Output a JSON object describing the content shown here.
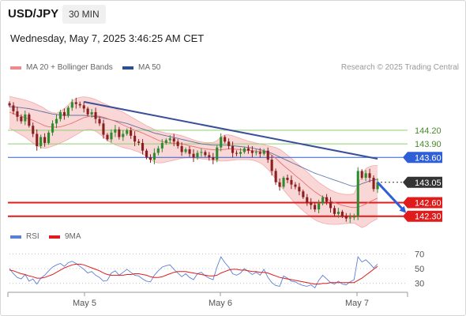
{
  "header": {
    "symbol": "USD/JPY",
    "timeframe": "30 MIN",
    "timestamp": "Wednesday, May 7, 2025 3:46:25 AM CET"
  },
  "legend_main": [
    {
      "label": "MA 20 + Bollinger Bands",
      "color": "#f08a8a"
    },
    {
      "label": "MA 50",
      "color": "#2e4f8f"
    }
  ],
  "credit": "Research © 2025 Trading Central",
  "legend_rsi": [
    {
      "label": "RSI",
      "color": "#5b7fd6"
    },
    {
      "label": "9MA",
      "color": "#e01b1b"
    }
  ],
  "colors": {
    "up": "#2e8b2e",
    "down": "#8b1f1f",
    "band_fill": "#f8c9c9",
    "ma50": "#2e4f8f",
    "trend": "#3a4f99",
    "resistance_green": "#8fcf6f",
    "blue_level": "#2f5fd6",
    "red_level": "#e01b1b",
    "current": "#333333"
  },
  "chart_data": [
    {
      "type": "candlestick",
      "title": "USD/JPY 30 MIN",
      "x_ticks": [
        "May 5",
        "May 6",
        "May 7"
      ],
      "ylim": [
        142.05,
        144.95
      ],
      "levels": [
        {
          "label": "144.20",
          "value": 144.2,
          "kind": "resistance",
          "color": "#8fcf6f"
        },
        {
          "label": "143.90",
          "value": 143.9,
          "kind": "resistance",
          "color": "#8fcf6f"
        },
        {
          "label": "143.60",
          "value": 143.6,
          "kind": "pivot",
          "color": "#2f5fd6"
        },
        {
          "label": "143.05",
          "value": 143.05,
          "kind": "current",
          "color": "#333333"
        },
        {
          "label": "142.60",
          "value": 142.6,
          "kind": "support",
          "color": "#e01b1b"
        },
        {
          "label": "142.30",
          "value": 142.3,
          "kind": "support",
          "color": "#e01b1b"
        }
      ],
      "close": [
        144.75,
        144.62,
        144.5,
        144.4,
        144.55,
        144.3,
        144.12,
        143.85,
        144.05,
        143.92,
        144.15,
        144.35,
        144.45,
        144.6,
        144.52,
        144.7,
        144.82,
        144.78,
        144.75,
        144.68,
        144.55,
        144.6,
        144.45,
        144.35,
        144.1,
        144.0,
        144.15,
        144.22,
        144.05,
        144.12,
        144.2,
        144.08,
        143.95,
        143.92,
        143.75,
        143.6,
        143.55,
        143.7,
        143.8,
        143.92,
        143.98,
        144.02,
        143.95,
        143.85,
        143.72,
        143.78,
        143.68,
        143.6,
        143.7,
        143.72,
        143.65,
        143.6,
        143.55,
        143.82,
        144.05,
        143.95,
        143.85,
        143.7,
        143.68,
        143.72,
        143.8,
        143.75,
        143.7,
        143.72,
        143.68,
        143.75,
        143.55,
        143.3,
        143.05,
        142.95,
        143.15,
        143.1,
        143.0,
        142.95,
        142.85,
        142.72,
        142.6,
        142.55,
        142.45,
        142.58,
        142.72,
        142.62,
        142.48,
        142.35,
        142.4,
        142.3,
        142.25,
        142.27,
        142.3,
        143.3,
        143.15,
        143.25,
        143.15,
        142.9,
        143.05
      ],
      "ma20": [
        144.6,
        144.57,
        144.54,
        144.51,
        144.48,
        144.45,
        144.42,
        144.38,
        144.34,
        144.3,
        144.28,
        144.27,
        144.27,
        144.28,
        144.3,
        144.33,
        144.36,
        144.4,
        144.44,
        144.48,
        144.5,
        144.52,
        144.52,
        144.51,
        144.49,
        144.46,
        144.43,
        144.4,
        144.36,
        144.32,
        144.28,
        144.24,
        144.2,
        144.17,
        144.14,
        144.1,
        144.06,
        144.02,
        143.98,
        143.95,
        143.93,
        143.92,
        143.92,
        143.91,
        143.9,
        143.88,
        143.86,
        143.84,
        143.82,
        143.8,
        143.79,
        143.78,
        143.77,
        143.76,
        143.77,
        143.78,
        143.79,
        143.79,
        143.78,
        143.77,
        143.76,
        143.76,
        143.75,
        143.74,
        143.73,
        143.72,
        143.7,
        143.65,
        143.58,
        143.5,
        143.42,
        143.35,
        143.28,
        143.2,
        143.13,
        143.06,
        142.98,
        142.91,
        142.84,
        142.78,
        142.73,
        142.68,
        142.64,
        142.6,
        142.57,
        142.54,
        142.52,
        142.5,
        142.49,
        142.5,
        142.53,
        142.57,
        142.62,
        142.66,
        142.7
      ],
      "band_upper": [
        144.95,
        144.93,
        144.91,
        144.89,
        144.87,
        144.84,
        144.81,
        144.77,
        144.73,
        144.68,
        144.62,
        144.59,
        144.58,
        144.62,
        144.68,
        144.76,
        144.85,
        144.9,
        144.93,
        144.94,
        144.93,
        144.91,
        144.88,
        144.84,
        144.8,
        144.76,
        144.72,
        144.68,
        144.64,
        144.6,
        144.55,
        144.5,
        144.45,
        144.4,
        144.35,
        144.3,
        144.26,
        144.22,
        144.18,
        144.16,
        144.14,
        144.13,
        144.12,
        144.1,
        144.08,
        144.05,
        144.02,
        143.99,
        143.96,
        143.94,
        143.93,
        143.93,
        143.93,
        143.97,
        144.05,
        144.1,
        144.1,
        144.08,
        144.05,
        144.02,
        143.99,
        143.96,
        143.94,
        143.92,
        143.9,
        143.88,
        143.86,
        143.84,
        143.82,
        143.78,
        143.72,
        143.65,
        143.58,
        143.5,
        143.43,
        143.36,
        143.28,
        143.2,
        143.12,
        143.05,
        142.99,
        142.93,
        142.88,
        142.84,
        142.81,
        142.79,
        142.78,
        142.78,
        142.8,
        143.0,
        143.2,
        143.35,
        143.4,
        143.42,
        143.42
      ],
      "band_lower": [
        144.25,
        144.2,
        144.15,
        144.1,
        144.05,
        143.98,
        143.92,
        143.86,
        143.82,
        143.8,
        143.82,
        143.85,
        143.88,
        143.92,
        143.96,
        144.0,
        144.05,
        144.1,
        144.15,
        144.2,
        144.22,
        144.22,
        144.18,
        144.12,
        144.05,
        143.98,
        143.92,
        143.88,
        143.85,
        143.82,
        143.8,
        143.78,
        143.75,
        143.72,
        143.68,
        143.62,
        143.55,
        143.5,
        143.48,
        143.48,
        143.5,
        143.52,
        143.54,
        143.56,
        143.58,
        143.59,
        143.59,
        143.59,
        143.58,
        143.57,
        143.56,
        143.55,
        143.54,
        143.53,
        143.52,
        143.52,
        143.53,
        143.54,
        143.55,
        143.55,
        143.55,
        143.55,
        143.54,
        143.52,
        143.48,
        143.42,
        143.34,
        143.24,
        143.12,
        143.0,
        142.88,
        142.78,
        142.68,
        142.58,
        142.5,
        142.42,
        142.35,
        142.28,
        142.22,
        142.18,
        142.15,
        142.13,
        142.12,
        142.12,
        142.12,
        142.13,
        142.14,
        142.15,
        142.15,
        142.1,
        142.05,
        142.08,
        142.15,
        142.2,
        142.25
      ],
      "ma50": [
        144.72,
        144.72,
        144.71,
        144.7,
        144.69,
        144.68,
        144.66,
        144.64,
        144.62,
        144.6,
        144.58,
        144.56,
        144.55,
        144.54,
        144.53,
        144.53,
        144.53,
        144.53,
        144.53,
        144.53,
        144.52,
        144.51,
        144.5,
        144.49,
        144.47,
        144.45,
        144.43,
        144.41,
        144.39,
        144.37,
        144.35,
        144.32,
        144.29,
        144.26,
        144.23,
        144.2,
        144.17,
        144.14,
        144.12,
        144.1,
        144.08,
        144.06,
        144.04,
        144.02,
        144.0,
        143.98,
        143.96,
        143.94,
        143.92,
        143.9,
        143.89,
        143.88,
        143.87,
        143.87,
        143.87,
        143.87,
        143.87,
        143.86,
        143.85,
        143.84,
        143.83,
        143.82,
        143.81,
        143.79,
        143.77,
        143.75,
        143.72,
        143.69,
        143.65,
        143.61,
        143.57,
        143.53,
        143.49,
        143.45,
        143.41,
        143.37,
        143.33,
        143.29,
        143.25,
        143.22,
        143.19,
        143.16,
        143.13,
        143.1,
        143.07,
        143.04,
        143.01,
        142.98,
        142.96,
        142.98,
        143.02,
        143.05,
        143.08,
        143.1,
        143.12
      ],
      "trendline": {
        "from": [
          19,
          144.83
        ],
        "to": [
          94,
          143.57
        ]
      },
      "arrow": {
        "from": [
          94,
          143.05
        ],
        "to": [
          101,
          142.4
        ]
      }
    },
    {
      "type": "line",
      "title": "RSI",
      "y_ticks": [
        "70",
        "50",
        "30"
      ],
      "ylim": [
        20,
        80
      ],
      "series": [
        {
          "name": "RSI",
          "values": [
            50,
            43,
            38,
            36,
            42,
            33,
            36,
            29,
            37,
            41,
            47,
            52,
            55,
            57,
            53,
            58,
            60,
            57,
            53,
            49,
            44,
            46,
            41,
            38,
            33,
            34,
            44,
            47,
            41,
            45,
            49,
            45,
            41,
            40,
            36,
            33,
            32,
            41,
            47,
            52,
            54,
            55,
            49,
            44,
            39,
            43,
            38,
            35,
            43,
            45,
            40,
            37,
            35,
            52,
            66,
            58,
            52,
            43,
            41,
            44,
            50,
            46,
            42,
            45,
            41,
            49,
            38,
            31,
            27,
            26,
            40,
            37,
            33,
            32,
            29,
            27,
            26,
            28,
            24,
            34,
            41,
            36,
            31,
            29,
            33,
            29,
            28,
            32,
            35,
            66,
            59,
            62,
            57,
            51,
            56
          ]
        },
        {
          "name": "9MA",
          "values": [
            48,
            47,
            45,
            43,
            42,
            40,
            39,
            37,
            37,
            38,
            40,
            42,
            45,
            48,
            51,
            53,
            55,
            56,
            56,
            55,
            53,
            51,
            49,
            47,
            44,
            42,
            41,
            41,
            41,
            41,
            42,
            42,
            43,
            43,
            42,
            41,
            39,
            38,
            38,
            39,
            41,
            43,
            45,
            46,
            46,
            46,
            45,
            44,
            43,
            42,
            41,
            40,
            40,
            41,
            44,
            46,
            48,
            49,
            49,
            48,
            48,
            47,
            46,
            46,
            45,
            45,
            44,
            42,
            40,
            38,
            37,
            36,
            35,
            34,
            33,
            32,
            31,
            30,
            29,
            29,
            30,
            30,
            31,
            31,
            31,
            31,
            31,
            31,
            31,
            34,
            37,
            41,
            45,
            49,
            53
          ]
        }
      ]
    }
  ]
}
